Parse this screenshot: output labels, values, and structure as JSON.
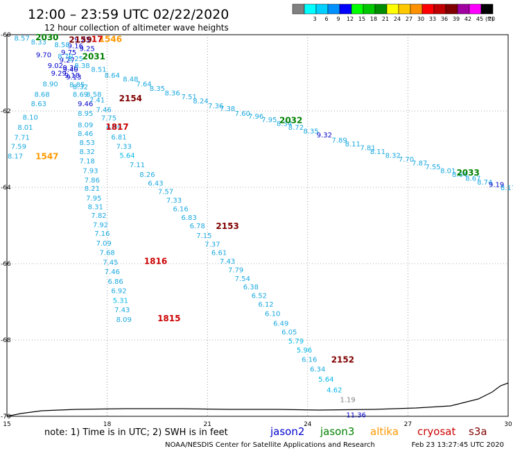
{
  "header": {
    "title": "12:00 – 23:59 UTC 02/22/2020",
    "subtitle": "12 hour collection of altimeter wave heights"
  },
  "color_scale": {
    "unit_label": "(ft)",
    "bins": [
      {
        "label": "",
        "color": "#808080"
      },
      {
        "label": "3",
        "color": "#00ffff"
      },
      {
        "label": "6",
        "color": "#00d0ff"
      },
      {
        "label": "9",
        "color": "#0090ff"
      },
      {
        "label": "12",
        "color": "#0000ff"
      },
      {
        "label": "15",
        "color": "#00ff00"
      },
      {
        "label": "18",
        "color": "#00c800"
      },
      {
        "label": "21",
        "color": "#008c00"
      },
      {
        "label": "24",
        "color": "#ffff00"
      },
      {
        "label": "27",
        "color": "#ffc800"
      },
      {
        "label": "30",
        "color": "#ff9000"
      },
      {
        "label": "33",
        "color": "#ff0000"
      },
      {
        "label": "36",
        "color": "#c00000"
      },
      {
        "label": "39",
        "color": "#800000"
      },
      {
        "label": "42",
        "color": "#a000a0"
      },
      {
        "label": "45",
        "color": "#ff00ff"
      },
      {
        "label": "70",
        "color": "#000000"
      }
    ]
  },
  "chart_data": {
    "type": "scatter",
    "x_range": [
      15,
      30
    ],
    "y_range": [
      -70,
      -60
    ],
    "x_ticks": [
      15,
      18,
      21,
      24,
      27,
      30
    ],
    "x_tick_labels": [
      "15",
      "18",
      "21",
      "24",
      "27",
      "30"
    ],
    "y_ticks": [
      -60,
      -62,
      -64,
      -66,
      -68,
      -70
    ],
    "y_tick_labels": [
      "-60",
      "-62",
      "-64",
      "-66",
      "-68",
      "-70"
    ],
    "satellite_colors": {
      "jason2": "#0000cc",
      "jason3": "#008000",
      "altika": "#ff9900",
      "cryosat": "#cc0000",
      "s3a": "#800000"
    },
    "tracks": [
      {
        "points": [
          {
            "x": 15.45,
            "y": -60.08,
            "v": "8.57"
          },
          {
            "x": 15.95,
            "y": -60.18,
            "v": "8.33"
          },
          {
            "x": 16.1,
            "y": -60.52,
            "v": "9.70"
          },
          {
            "x": 16.45,
            "y": -60.8,
            "v": "9.02"
          },
          {
            "x": 16.55,
            "y": -61.0,
            "v": "9.29"
          },
          {
            "x": 16.3,
            "y": -61.28,
            "v": "8.90"
          },
          {
            "x": 16.05,
            "y": -61.55,
            "v": "8.68"
          },
          {
            "x": 15.95,
            "y": -61.8,
            "v": "8.63"
          },
          {
            "x": 15.7,
            "y": -62.15,
            "v": "8.10"
          },
          {
            "x": 15.55,
            "y": -62.42,
            "v": "8.01"
          },
          {
            "x": 15.45,
            "y": -62.68,
            "v": "7.71"
          },
          {
            "x": 15.35,
            "y": -62.92,
            "v": "7.59"
          },
          {
            "x": 15.25,
            "y": -63.17,
            "v": "8.17"
          }
        ]
      },
      {
        "points": [
          {
            "x": 17.25,
            "y": -60.12,
            "v": "9.23"
          },
          {
            "x": 17.05,
            "y": -60.28,
            "v": "9.16"
          },
          {
            "x": 16.85,
            "y": -60.45,
            "v": "9.75"
          },
          {
            "x": 16.8,
            "y": -60.65,
            "v": "9.27"
          },
          {
            "x": 16.9,
            "y": -60.85,
            "v": "9.36"
          },
          {
            "x": 16.95,
            "y": -61.05,
            "v": "9.18"
          },
          {
            "x": 17.1,
            "y": -61.3,
            "v": "8.85"
          },
          {
            "x": 17.2,
            "y": -61.55,
            "v": "8.69"
          },
          {
            "x": 17.35,
            "y": -61.8,
            "v": "9.46"
          },
          {
            "x": 17.35,
            "y": -62.05,
            "v": "8.95"
          },
          {
            "x": 17.35,
            "y": -62.35,
            "v": "8.09"
          },
          {
            "x": 17.35,
            "y": -62.58,
            "v": "8.46"
          },
          {
            "x": 17.4,
            "y": -62.82,
            "v": "8.53"
          },
          {
            "x": 17.4,
            "y": -63.05,
            "v": "8.32"
          },
          {
            "x": 17.4,
            "y": -63.3,
            "v": "7.18"
          },
          {
            "x": 17.5,
            "y": -63.55,
            "v": "7.93"
          },
          {
            "x": 17.55,
            "y": -63.8,
            "v": "7.86"
          },
          {
            "x": 17.55,
            "y": -64.02,
            "v": "8.21"
          },
          {
            "x": 17.6,
            "y": -64.27,
            "v": "7.95"
          },
          {
            "x": 17.65,
            "y": -64.5,
            "v": "8.31"
          },
          {
            "x": 17.75,
            "y": -64.73,
            "v": "7.82"
          },
          {
            "x": 17.8,
            "y": -64.97,
            "v": "7.92"
          },
          {
            "x": 17.85,
            "y": -65.2,
            "v": "7.16"
          },
          {
            "x": 17.9,
            "y": -65.45,
            "v": "7.09"
          },
          {
            "x": 18.0,
            "y": -65.7,
            "v": "7.68"
          },
          {
            "x": 18.1,
            "y": -65.95,
            "v": "7.45"
          },
          {
            "x": 18.15,
            "y": -66.2,
            "v": "7.46"
          },
          {
            "x": 18.25,
            "y": -66.45,
            "v": "6.86"
          },
          {
            "x": 18.35,
            "y": -66.7,
            "v": "6.92"
          },
          {
            "x": 18.4,
            "y": -66.95,
            "v": "5.31"
          },
          {
            "x": 18.45,
            "y": -67.2,
            "v": "7.43"
          },
          {
            "x": 18.5,
            "y": -67.45,
            "v": "8.09"
          }
        ]
      },
      {
        "points": [
          {
            "x": 17.7,
            "y": -61.7,
            "v": "7.41"
          },
          {
            "x": 17.9,
            "y": -61.95,
            "v": "7.46"
          },
          {
            "x": 18.05,
            "y": -62.17,
            "v": "7.75"
          },
          {
            "x": 18.2,
            "y": -62.42,
            "v": "6.99"
          },
          {
            "x": 18.35,
            "y": -62.67,
            "v": "6.81"
          },
          {
            "x": 18.5,
            "y": -62.92,
            "v": "7.33"
          },
          {
            "x": 18.6,
            "y": -63.15,
            "v": "5.64"
          },
          {
            "x": 18.9,
            "y": -63.4,
            "v": "7.11"
          },
          {
            "x": 19.2,
            "y": -63.65,
            "v": "8.26"
          },
          {
            "x": 19.45,
            "y": -63.88,
            "v": "6.43"
          },
          {
            "x": 19.75,
            "y": -64.1,
            "v": "7.57"
          },
          {
            "x": 20.0,
            "y": -64.33,
            "v": "7.33"
          },
          {
            "x": 20.2,
            "y": -64.55,
            "v": "6.16"
          },
          {
            "x": 20.45,
            "y": -64.78,
            "v": "6.83"
          },
          {
            "x": 20.7,
            "y": -65.0,
            "v": "6.78"
          },
          {
            "x": 20.9,
            "y": -65.25,
            "v": "7.15"
          },
          {
            "x": 21.15,
            "y": -65.48,
            "v": "7.37"
          },
          {
            "x": 21.35,
            "y": -65.7,
            "v": "6.61"
          },
          {
            "x": 21.6,
            "y": -65.93,
            "v": "7.43"
          },
          {
            "x": 21.85,
            "y": -66.15,
            "v": "7.79"
          },
          {
            "x": 22.05,
            "y": -66.38,
            "v": "7.54"
          },
          {
            "x": 22.3,
            "y": -66.6,
            "v": "6.38"
          },
          {
            "x": 22.55,
            "y": -66.83,
            "v": "6.52"
          },
          {
            "x": 22.75,
            "y": -67.05,
            "v": "6.12"
          },
          {
            "x": 22.95,
            "y": -67.3,
            "v": "6.10"
          },
          {
            "x": 23.2,
            "y": -67.55,
            "v": "6.49"
          },
          {
            "x": 23.45,
            "y": -67.78,
            "v": "6.05"
          },
          {
            "x": 23.65,
            "y": -68.02,
            "v": "5.79"
          },
          {
            "x": 23.9,
            "y": -68.25,
            "v": "5.96"
          },
          {
            "x": 24.05,
            "y": -68.5,
            "v": "6.16"
          },
          {
            "x": 24.3,
            "y": -68.75,
            "v": "6.34"
          },
          {
            "x": 24.55,
            "y": -69.02,
            "v": "5.64"
          },
          {
            "x": 24.8,
            "y": -69.3,
            "v": "4.62"
          },
          {
            "x": 25.2,
            "y": -69.55,
            "v": "1.19"
          },
          {
            "x": 25.45,
            "y": -69.95,
            "v": "11.36"
          }
        ]
      },
      {
        "points": [
          {
            "x": 17.75,
            "y": -60.9,
            "v": "8.51"
          },
          {
            "x": 18.15,
            "y": -61.05,
            "v": "8.64"
          },
          {
            "x": 18.7,
            "y": -61.15,
            "v": "8.48"
          },
          {
            "x": 19.1,
            "y": -61.28,
            "v": "7.64"
          },
          {
            "x": 19.5,
            "y": -61.4,
            "v": "8.35"
          },
          {
            "x": 19.95,
            "y": -61.52,
            "v": "8.36"
          },
          {
            "x": 20.45,
            "y": -61.62,
            "v": "7.51"
          },
          {
            "x": 20.8,
            "y": -61.73,
            "v": "8.24"
          },
          {
            "x": 21.25,
            "y": -61.85,
            "v": "7.36"
          },
          {
            "x": 21.6,
            "y": -61.93,
            "v": "7.38"
          },
          {
            "x": 22.05,
            "y": -62.05,
            "v": "7.60"
          },
          {
            "x": 22.45,
            "y": -62.13,
            "v": "7.96"
          },
          {
            "x": 22.85,
            "y": -62.22,
            "v": "7.95"
          },
          {
            "x": 23.3,
            "y": -62.32,
            "v": "8.34"
          },
          {
            "x": 23.65,
            "y": -62.42,
            "v": "8.72"
          },
          {
            "x": 24.1,
            "y": -62.52,
            "v": "8.35"
          },
          {
            "x": 24.5,
            "y": -62.62,
            "v": "9.32"
          },
          {
            "x": 24.95,
            "y": -62.75,
            "v": "7.89"
          },
          {
            "x": 25.35,
            "y": -62.85,
            "v": "8.11"
          },
          {
            "x": 25.8,
            "y": -62.95,
            "v": "7.81"
          },
          {
            "x": 26.1,
            "y": -63.05,
            "v": "8.11"
          },
          {
            "x": 26.55,
            "y": -63.15,
            "v": "8.32"
          },
          {
            "x": 26.95,
            "y": -63.25,
            "v": "7.70"
          },
          {
            "x": 27.35,
            "y": -63.35,
            "v": "7.87"
          },
          {
            "x": 27.75,
            "y": -63.45,
            "v": "7.55"
          },
          {
            "x": 28.2,
            "y": -63.55,
            "v": "8.01"
          },
          {
            "x": 28.55,
            "y": -63.65,
            "v": "8.64"
          },
          {
            "x": 28.95,
            "y": -63.75,
            "v": "8.67"
          },
          {
            "x": 29.3,
            "y": -63.85,
            "v": "8.74"
          },
          {
            "x": 29.65,
            "y": -63.92,
            "v": "9.19"
          },
          {
            "x": 30.0,
            "y": -64.0,
            "v": "8.17"
          }
        ]
      },
      {
        "points": [
          {
            "x": 16.65,
            "y": -60.25,
            "v": "8.58"
          },
          {
            "x": 16.75,
            "y": -60.55,
            "v": "8.70"
          },
          {
            "x": 16.9,
            "y": -60.9,
            "v": "9.40"
          },
          {
            "x": 17.0,
            "y": -61.1,
            "v": "9.13"
          },
          {
            "x": 17.2,
            "y": -61.35,
            "v": "8.32"
          },
          {
            "x": 17.6,
            "y": -61.55,
            "v": "8.58"
          },
          {
            "x": 17.25,
            "y": -60.8,
            "v": "8.38"
          },
          {
            "x": 17.05,
            "y": -60.62,
            "v": "8.25"
          },
          {
            "x": 17.4,
            "y": -60.35,
            "v": "9.25"
          }
        ]
      }
    ],
    "pass_labels": [
      {
        "x": 16.2,
        "y": -60.05,
        "text": "2030",
        "sat": "jason3"
      },
      {
        "x": 18.1,
        "y": -60.1,
        "text": "1546",
        "sat": "altika"
      },
      {
        "x": 17.7,
        "y": -60.1,
        "text": "17",
        "sat": "cryosat"
      },
      {
        "x": 17.2,
        "y": -60.12,
        "text": "2159",
        "sat": "s3a"
      },
      {
        "x": 17.6,
        "y": -60.55,
        "text": "2031",
        "sat": "jason3"
      },
      {
        "x": 18.7,
        "y": -61.65,
        "text": "2154",
        "sat": "s3a"
      },
      {
        "x": 18.3,
        "y": -62.4,
        "text": "1817",
        "sat": "cryosat"
      },
      {
        "x": 16.2,
        "y": -63.17,
        "text": "1547",
        "sat": "altika"
      },
      {
        "x": 23.5,
        "y": -62.23,
        "text": "2032",
        "sat": "jason3"
      },
      {
        "x": 28.8,
        "y": -63.6,
        "text": "2033",
        "sat": "jason3"
      },
      {
        "x": 21.6,
        "y": -65.0,
        "text": "2153",
        "sat": "s3a"
      },
      {
        "x": 19.45,
        "y": -65.92,
        "text": "1816",
        "sat": "cryosat"
      },
      {
        "x": 19.85,
        "y": -67.42,
        "text": "1815",
        "sat": "cryosat"
      },
      {
        "x": 25.05,
        "y": -68.5,
        "text": "2152",
        "sat": "s3a"
      }
    ]
  },
  "footer": {
    "note": "note: 1) Time is in UTC; 2) SWH is in feet",
    "satellites": [
      {
        "name": "jason2",
        "color": "#0000cc"
      },
      {
        "name": "jason3",
        "color": "#008000"
      },
      {
        "name": "altika",
        "color": "#ff9900"
      },
      {
        "name": "cryosat",
        "color": "#cc0000"
      },
      {
        "name": "s3a",
        "color": "#800000"
      }
    ],
    "credit": "NOAA/NESDIS Center for Satellite Applications and Research",
    "timestamp": "Feb 23 13:27:45 UTC 2020"
  }
}
